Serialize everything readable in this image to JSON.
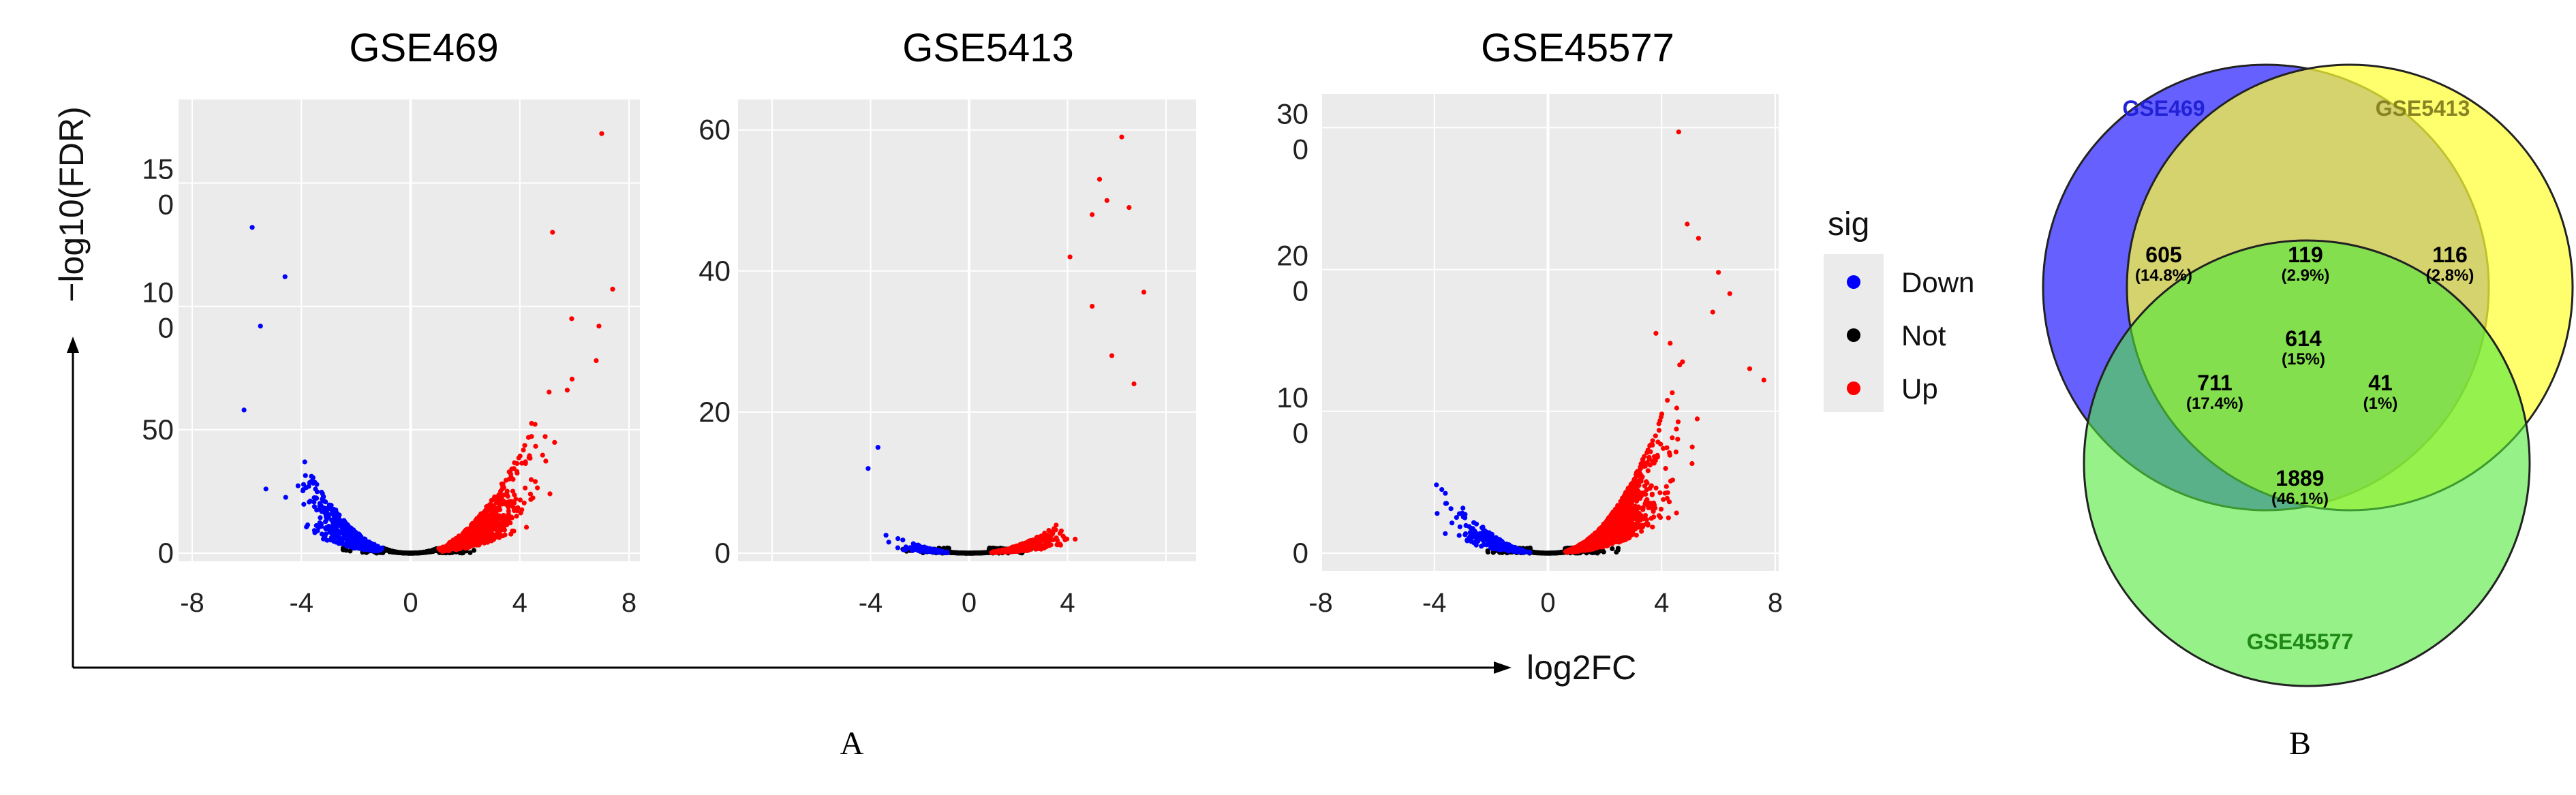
{
  "figure": {
    "y_axis_label": "−log10(FDR)",
    "x_axis_label": "log2FC",
    "panel_labels": [
      "A",
      "B"
    ]
  },
  "legend": {
    "title": "sig",
    "items": [
      {
        "label": "Down",
        "color": "#0000ff"
      },
      {
        "label": "Not",
        "color": "#000000"
      },
      {
        "label": "Up",
        "color": "#ff0000"
      }
    ]
  },
  "colors": {
    "panel_bg": "#ebebeb",
    "grid": "#ffffff"
  },
  "chart_data": [
    {
      "type": "scatter",
      "title": "GSE469",
      "xlim": [
        -8,
        8
      ],
      "ylim": [
        0,
        175
      ],
      "x_ticks": [
        "-8",
        "-4",
        "0",
        "4",
        "8"
      ],
      "y_ticks": [
        {
          "value": 0,
          "label": "0"
        },
        {
          "value": 50,
          "label": "50"
        },
        {
          "value": 100,
          "label": "10\n0"
        },
        {
          "value": 150,
          "label": "15\n0"
        }
      ],
      "threshold_x": 1,
      "spread_scale": 1,
      "outliers": [
        {
          "x": -5.8,
          "y": 132,
          "sig": "Down"
        },
        {
          "x": -4.6,
          "y": 112,
          "sig": "Down"
        },
        {
          "x": -5.5,
          "y": 92,
          "sig": "Down"
        },
        {
          "x": -6.1,
          "y": 58,
          "sig": "Down"
        },
        {
          "x": -5.3,
          "y": 26,
          "sig": "Down"
        },
        {
          "x": 7.0,
          "y": 170,
          "sig": "Up"
        },
        {
          "x": 5.2,
          "y": 130,
          "sig": "Up"
        },
        {
          "x": 7.4,
          "y": 107,
          "sig": "Up"
        },
        {
          "x": 6.9,
          "y": 92,
          "sig": "Up"
        },
        {
          "x": 5.9,
          "y": 95,
          "sig": "Up"
        },
        {
          "x": 6.8,
          "y": 78,
          "sig": "Up"
        }
      ],
      "counts": {
        "Down": 520,
        "Up": 700,
        "Not": 500
      }
    },
    {
      "type": "scatter",
      "title": "GSE5413",
      "xlim": [
        -8,
        8
      ],
      "ylim": [
        0,
        62
      ],
      "x_ticks": [
        "-4",
        "0",
        "4"
      ],
      "y_ticks": [
        {
          "value": 0,
          "label": "0"
        },
        {
          "value": 20,
          "label": "20"
        },
        {
          "value": 40,
          "label": "40"
        },
        {
          "value": 60,
          "label": "60"
        }
      ],
      "threshold_x": 0.8,
      "spread_scale": 0.35,
      "outliers": [
        {
          "x": 6.2,
          "y": 59,
          "sig": "Up"
        },
        {
          "x": 5.3,
          "y": 53,
          "sig": "Up"
        },
        {
          "x": 5.6,
          "y": 50,
          "sig": "Up"
        },
        {
          "x": 6.5,
          "y": 49,
          "sig": "Up"
        },
        {
          "x": 5.0,
          "y": 48,
          "sig": "Up"
        },
        {
          "x": 4.1,
          "y": 42,
          "sig": "Up"
        },
        {
          "x": 7.1,
          "y": 37,
          "sig": "Up"
        },
        {
          "x": 5.0,
          "y": 35,
          "sig": "Up"
        },
        {
          "x": 5.8,
          "y": 28,
          "sig": "Up"
        },
        {
          "x": 6.7,
          "y": 24,
          "sig": "Up"
        },
        {
          "x": -3.7,
          "y": 15,
          "sig": "Down"
        },
        {
          "x": -4.1,
          "y": 12,
          "sig": "Down"
        }
      ],
      "counts": {
        "Down": 130,
        "Up": 330,
        "Not": 450
      }
    },
    {
      "type": "scatter",
      "title": "GSE45577",
      "xlim": [
        -8,
        8
      ],
      "ylim": [
        0,
        305
      ],
      "x_ticks": [
        "-8",
        "-4",
        "0",
        "4",
        "8"
      ],
      "y_ticks": [
        {
          "value": 0,
          "label": "0"
        },
        {
          "value": 100,
          "label": "10\n0"
        },
        {
          "value": 200,
          "label": "20\n0"
        },
        {
          "value": 300,
          "label": "30\n0"
        }
      ],
      "threshold_x": 0.6,
      "spread_scale": 0.9,
      "outliers": [
        {
          "x": 4.6,
          "y": 297,
          "sig": "Up"
        },
        {
          "x": 4.9,
          "y": 232,
          "sig": "Up"
        },
        {
          "x": 5.3,
          "y": 222,
          "sig": "Up"
        },
        {
          "x": 6.0,
          "y": 198,
          "sig": "Up"
        },
        {
          "x": 6.4,
          "y": 183,
          "sig": "Up"
        },
        {
          "x": 5.8,
          "y": 170,
          "sig": "Up"
        },
        {
          "x": 7.1,
          "y": 130,
          "sig": "Up"
        },
        {
          "x": 7.6,
          "y": 122,
          "sig": "Up"
        },
        {
          "x": 3.8,
          "y": 155,
          "sig": "Up"
        },
        {
          "x": 4.3,
          "y": 148,
          "sig": "Up"
        },
        {
          "x": -3.9,
          "y": 28,
          "sig": "Down"
        },
        {
          "x": -3.6,
          "y": 35,
          "sig": "Down"
        }
      ],
      "counts": {
        "Down": 260,
        "Up": 1500,
        "Not": 350
      }
    },
    {
      "type": "venn",
      "sets": [
        {
          "name": "GSE469",
          "color": "#4b44ff",
          "label_color": "#2121d6"
        },
        {
          "name": "GSE5413",
          "color": "#ffff36",
          "label_color": "#8a8324"
        },
        {
          "name": "GSE45577",
          "color": "#4ee838",
          "label_color": "#1e8a14"
        }
      ],
      "regions": [
        {
          "sets": [
            "GSE469"
          ],
          "count": "605",
          "percent": "(14.8%)"
        },
        {
          "sets": [
            "GSE469",
            "GSE5413"
          ],
          "count": "119",
          "percent": "(2.9%)"
        },
        {
          "sets": [
            "GSE5413"
          ],
          "count": "116",
          "percent": "(2.8%)"
        },
        {
          "sets": [
            "GSE469",
            "GSE5413",
            "GSE45577"
          ],
          "count": "614",
          "percent": "(15%)"
        },
        {
          "sets": [
            "GSE469",
            "GSE45577"
          ],
          "count": "711",
          "percent": "(17.4%)"
        },
        {
          "sets": [
            "GSE5413",
            "GSE45577"
          ],
          "count": "41",
          "percent": "(1%)"
        },
        {
          "sets": [
            "GSE45577"
          ],
          "count": "1889",
          "percent": "(46.1%)"
        }
      ]
    }
  ]
}
